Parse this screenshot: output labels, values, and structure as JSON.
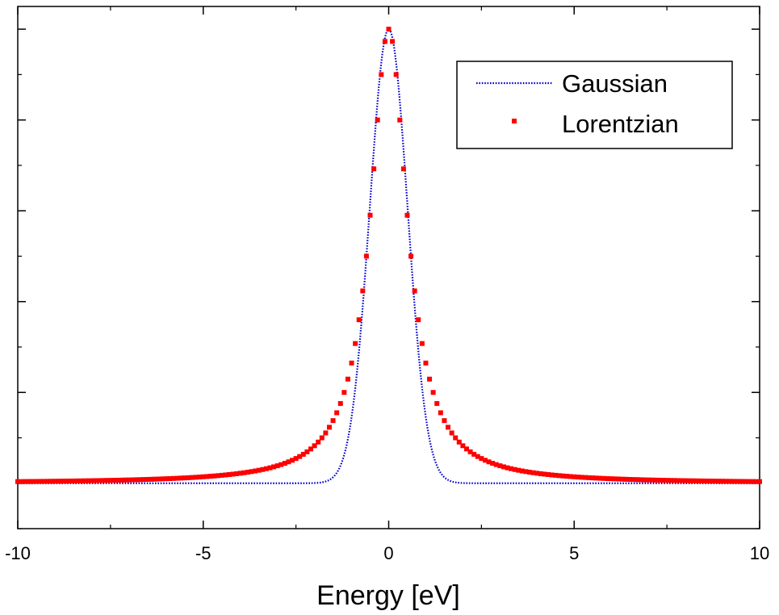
{
  "chart_data": {
    "type": "line",
    "title": "",
    "xlabel": "Energy [eV]",
    "ylabel": "",
    "xlim": [
      -10,
      10
    ],
    "ylim": [
      -0.1,
      1.05
    ],
    "x_ticks": [
      -10,
      -5,
      0,
      5,
      10
    ],
    "x_tick_labels": [
      "-10",
      "-5",
      "0",
      "5",
      "10"
    ],
    "y_ticks_major": [
      0,
      0.2,
      0.4,
      0.6,
      0.8,
      1.0
    ],
    "y_tick_labels_visible": false,
    "grid": false,
    "legend_position": "top-right",
    "series": [
      {
        "name": "Gaussian",
        "style": "dotted-line",
        "color": "#0000cc",
        "function": "gaussian",
        "center": 0,
        "fwhm": 1.2,
        "amplitude": 1.0,
        "x_range": [
          -10,
          10
        ]
      },
      {
        "name": "Lorentzian",
        "style": "square-markers",
        "color": "#ff0000",
        "function": "lorentzian",
        "center": 0,
        "fwhm": 1.2,
        "amplitude": 1.0,
        "x_range": [
          -10,
          10
        ],
        "x_step": 0.1
      }
    ]
  }
}
